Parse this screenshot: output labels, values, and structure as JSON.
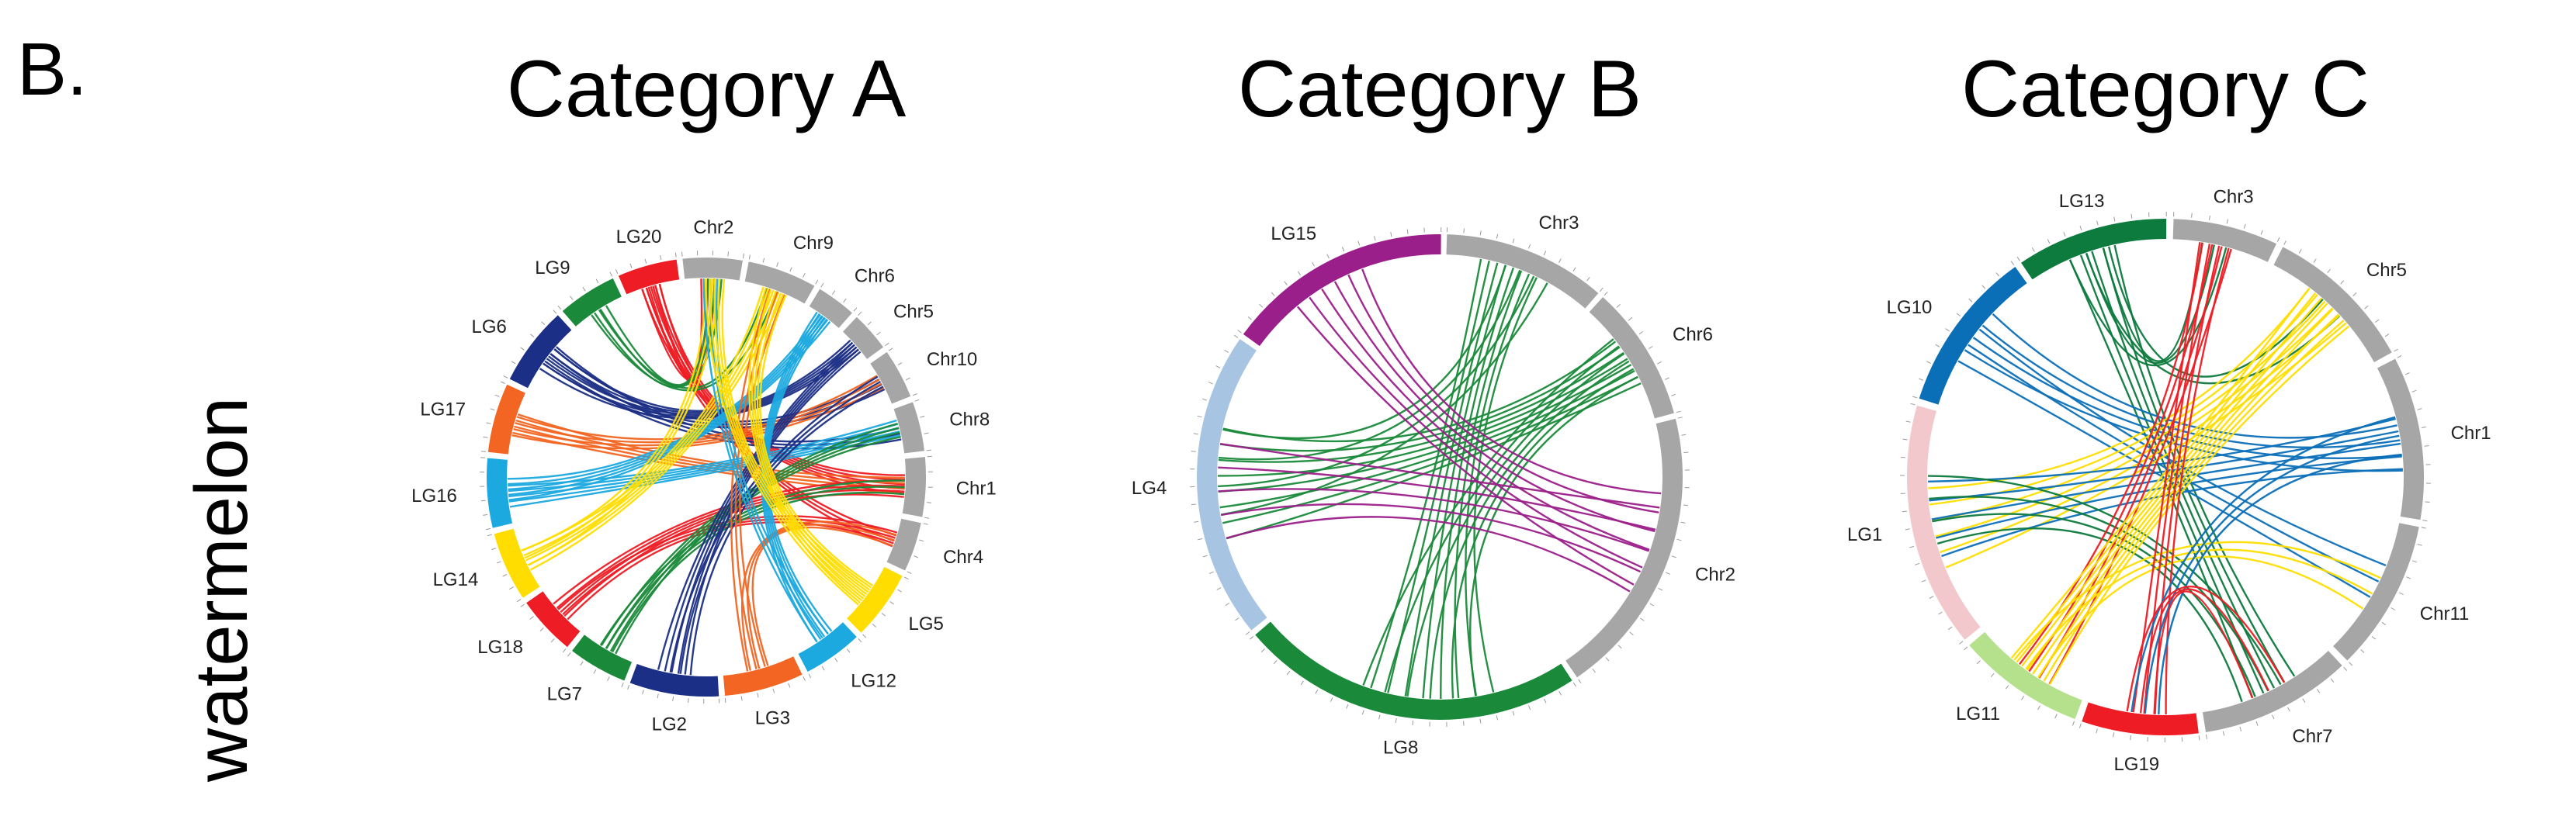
{
  "panel_label": "B.",
  "row_label": "watermelon",
  "colors": {
    "grey": "#a6a6a6",
    "green": "#1a8a3a",
    "red": "#ee1c24",
    "navy": "#1c2f86",
    "orange": "#f26522",
    "cyan": "#1ba9df",
    "yellow": "#ffdd00",
    "purple": "#9b1f8a",
    "lightblue": "#a7c4e2",
    "darkgreen": "#0d7a3e",
    "blue": "#0b6fb8",
    "pink": "#f2c8cc",
    "lightgreen": "#b5e08c"
  },
  "chart_data": [
    {
      "type": "chord",
      "title": "Category A",
      "segments": [
        {
          "name": "Chr2",
          "color": "grey"
        },
        {
          "name": "Chr9",
          "color": "grey"
        },
        {
          "name": "Chr6",
          "color": "grey"
        },
        {
          "name": "Chr5",
          "color": "grey"
        },
        {
          "name": "Chr10",
          "color": "grey"
        },
        {
          "name": "Chr8",
          "color": "grey"
        },
        {
          "name": "Chr1",
          "color": "grey"
        },
        {
          "name": "Chr4",
          "color": "grey"
        },
        {
          "name": "LG5",
          "color": "yellow"
        },
        {
          "name": "LG12",
          "color": "cyan"
        },
        {
          "name": "LG3",
          "color": "orange"
        },
        {
          "name": "LG2",
          "color": "navy"
        },
        {
          "name": "LG7",
          "color": "green"
        },
        {
          "name": "LG18",
          "color": "red"
        },
        {
          "name": "LG14",
          "color": "yellow"
        },
        {
          "name": "LG16",
          "color": "cyan"
        },
        {
          "name": "LG17",
          "color": "orange"
        },
        {
          "name": "LG6",
          "color": "navy"
        },
        {
          "name": "LG9",
          "color": "green"
        },
        {
          "name": "LG20",
          "color": "red"
        }
      ],
      "links": [
        {
          "source": "LG20",
          "target": "Chr2",
          "color": "red",
          "count": 3
        },
        {
          "source": "LG20",
          "target": "Chr1",
          "color": "red",
          "count": 5
        },
        {
          "source": "LG20",
          "target": "Chr4",
          "color": "red",
          "count": 3
        },
        {
          "source": "LG9",
          "target": "Chr2",
          "color": "green",
          "count": 3
        },
        {
          "source": "LG9",
          "target": "Chr9",
          "color": "green",
          "count": 2
        },
        {
          "source": "LG6",
          "target": "Chr5",
          "color": "navy",
          "count": 5
        },
        {
          "source": "LG6",
          "target": "Chr10",
          "color": "navy",
          "count": 3
        },
        {
          "source": "LG6",
          "target": "Chr8",
          "color": "navy",
          "count": 3
        },
        {
          "source": "LG17",
          "target": "Chr10",
          "color": "orange",
          "count": 4
        },
        {
          "source": "LG17",
          "target": "Chr1",
          "color": "orange",
          "count": 4
        },
        {
          "source": "LG16",
          "target": "Chr6",
          "color": "cyan",
          "count": 5
        },
        {
          "source": "LG16",
          "target": "Chr8",
          "color": "cyan",
          "count": 5
        },
        {
          "source": "LG14",
          "target": "Chr9",
          "color": "yellow",
          "count": 5
        },
        {
          "source": "LG14",
          "target": "Chr2",
          "color": "yellow",
          "count": 3
        },
        {
          "source": "LG18",
          "target": "Chr1",
          "color": "red",
          "count": 4
        },
        {
          "source": "LG18",
          "target": "Chr4",
          "color": "red",
          "count": 3
        },
        {
          "source": "LG7",
          "target": "Chr8",
          "color": "green",
          "count": 4
        },
        {
          "source": "LG7",
          "target": "Chr1",
          "color": "green",
          "count": 3
        },
        {
          "source": "LG2",
          "target": "Chr5",
          "color": "navy",
          "count": 5
        },
        {
          "source": "LG2",
          "target": "Chr10",
          "color": "navy",
          "count": 3
        },
        {
          "source": "LG3",
          "target": "Chr4",
          "color": "orange",
          "count": 3
        },
        {
          "source": "LG3",
          "target": "Chr9",
          "color": "orange",
          "count": 3
        },
        {
          "source": "LG12",
          "target": "Chr6",
          "color": "cyan",
          "count": 5
        },
        {
          "source": "LG12",
          "target": "Chr2",
          "color": "cyan",
          "count": 3
        },
        {
          "source": "LG5",
          "target": "Chr9",
          "color": "yellow",
          "count": 5
        },
        {
          "source": "LG5",
          "target": "Chr2",
          "color": "yellow",
          "count": 5
        }
      ]
    },
    {
      "type": "chord",
      "title": "Category B",
      "segments": [
        {
          "name": "Chr3",
          "color": "grey"
        },
        {
          "name": "Chr6",
          "color": "grey"
        },
        {
          "name": "Chr2",
          "color": "grey"
        },
        {
          "name": "LG8",
          "color": "green"
        },
        {
          "name": "LG4",
          "color": "lightblue"
        },
        {
          "name": "LG15",
          "color": "purple"
        }
      ],
      "links": [
        {
          "source": "LG8",
          "target": "Chr3",
          "color": "green",
          "count": 8
        },
        {
          "source": "LG8",
          "target": "Chr6",
          "color": "green",
          "count": 6
        },
        {
          "source": "LG4",
          "target": "Chr6",
          "color": "green",
          "count": 8
        },
        {
          "source": "LG4",
          "target": "Chr3",
          "color": "green",
          "count": 4
        },
        {
          "source": "LG15",
          "target": "Chr2",
          "color": "purple",
          "count": 6
        },
        {
          "source": "LG4",
          "target": "Chr2",
          "color": "purple",
          "count": 5
        }
      ]
    },
    {
      "type": "chord",
      "title": "Category C",
      "segments": [
        {
          "name": "Chr3",
          "color": "grey"
        },
        {
          "name": "Chr5",
          "color": "grey"
        },
        {
          "name": "Chr1",
          "color": "grey"
        },
        {
          "name": "Chr11",
          "color": "grey"
        },
        {
          "name": "Chr7",
          "color": "grey"
        },
        {
          "name": "LG19",
          "color": "red"
        },
        {
          "name": "LG11",
          "color": "lightgreen"
        },
        {
          "name": "LG1",
          "color": "pink"
        },
        {
          "name": "LG10",
          "color": "blue"
        },
        {
          "name": "LG13",
          "color": "darkgreen"
        }
      ],
      "links": [
        {
          "source": "LG13",
          "target": "Chr3",
          "color": "darkgreen",
          "count": 3
        },
        {
          "source": "LG13",
          "target": "Chr7",
          "color": "darkgreen",
          "count": 5
        },
        {
          "source": "LG13",
          "target": "Chr5",
          "color": "darkgreen",
          "count": 2
        },
        {
          "source": "LG10",
          "target": "Chr1",
          "color": "blue",
          "count": 4
        },
        {
          "source": "LG10",
          "target": "Chr11",
          "color": "blue",
          "count": 3
        },
        {
          "source": "LG1",
          "target": "Chr5",
          "color": "yellow",
          "count": 6
        },
        {
          "source": "LG1",
          "target": "Chr1",
          "color": "blue",
          "count": 5
        },
        {
          "source": "LG1",
          "target": "Chr7",
          "color": "darkgreen",
          "count": 4
        },
        {
          "source": "LG11",
          "target": "Chr3",
          "color": "red",
          "count": 4
        },
        {
          "source": "LG11",
          "target": "Chr5",
          "color": "yellow",
          "count": 8
        },
        {
          "source": "LG11",
          "target": "Chr11",
          "color": "yellow",
          "count": 3
        },
        {
          "source": "LG19",
          "target": "Chr3",
          "color": "red",
          "count": 4
        },
        {
          "source": "LG19",
          "target": "Chr1",
          "color": "blue",
          "count": 3
        },
        {
          "source": "LG19",
          "target": "Chr7",
          "color": "red",
          "count": 3
        }
      ]
    }
  ]
}
